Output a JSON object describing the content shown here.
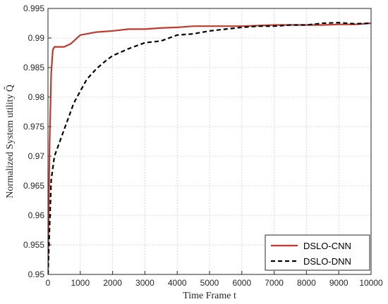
{
  "chart_data": {
    "type": "line",
    "xlabel": "Time Frame t",
    "ylabel": "Normalized System utility Q̂",
    "xlim": [
      0,
      10000
    ],
    "ylim": [
      0.95,
      0.995
    ],
    "xticks": [
      0,
      1000,
      2000,
      3000,
      4000,
      5000,
      6000,
      7000,
      8000,
      9000,
      10000
    ],
    "yticks": [
      0.95,
      0.955,
      0.96,
      0.965,
      0.97,
      0.975,
      0.98,
      0.985,
      0.99,
      0.995
    ],
    "xtick_labels": [
      "0",
      "1000",
      "2000",
      "3000",
      "4000",
      "5000",
      "6000",
      "7000",
      "8000",
      "9000",
      "10000"
    ],
    "ytick_labels": [
      "0.95",
      "0.955",
      "0.96",
      "0.965",
      "0.97",
      "0.975",
      "0.98",
      "0.985",
      "0.99",
      "0.995"
    ],
    "grid": true,
    "legend_position": "bottom-right",
    "series": [
      {
        "name": "DSLO-CNN",
        "color": "#c0392b",
        "style": "solid",
        "x": [
          0,
          50,
          100,
          150,
          200,
          300,
          500,
          700,
          1000,
          1500,
          2000,
          2500,
          3000,
          3500,
          4000,
          4500,
          5000,
          5500,
          6000,
          6500,
          7000,
          7500,
          8000,
          8500,
          9000,
          9500,
          10000
        ],
        "y": [
          0.95,
          0.972,
          0.984,
          0.988,
          0.9885,
          0.9885,
          0.9885,
          0.989,
          0.9905,
          0.991,
          0.9912,
          0.9915,
          0.9915,
          0.9917,
          0.9918,
          0.992,
          0.992,
          0.992,
          0.992,
          0.9921,
          0.9922,
          0.9922,
          0.9922,
          0.9922,
          0.9923,
          0.9923,
          0.9925
        ]
      },
      {
        "name": "DSLO-DNN",
        "color": "#000000",
        "style": "dashed",
        "x": [
          0,
          50,
          100,
          200,
          400,
          600,
          800,
          1000,
          1200,
          1500,
          1800,
          2000,
          2500,
          3000,
          3500,
          4000,
          4500,
          5000,
          5500,
          6000,
          6500,
          7000,
          7500,
          8000,
          8500,
          9000,
          9500,
          10000
        ],
        "y": [
          0.95,
          0.958,
          0.966,
          0.97,
          0.973,
          0.976,
          0.979,
          0.981,
          0.983,
          0.9848,
          0.9862,
          0.987,
          0.9882,
          0.9892,
          0.9895,
          0.9905,
          0.9907,
          0.9912,
          0.9915,
          0.9918,
          0.992,
          0.992,
          0.9922,
          0.9922,
          0.9925,
          0.9926,
          0.9924,
          0.9925
        ]
      }
    ]
  }
}
